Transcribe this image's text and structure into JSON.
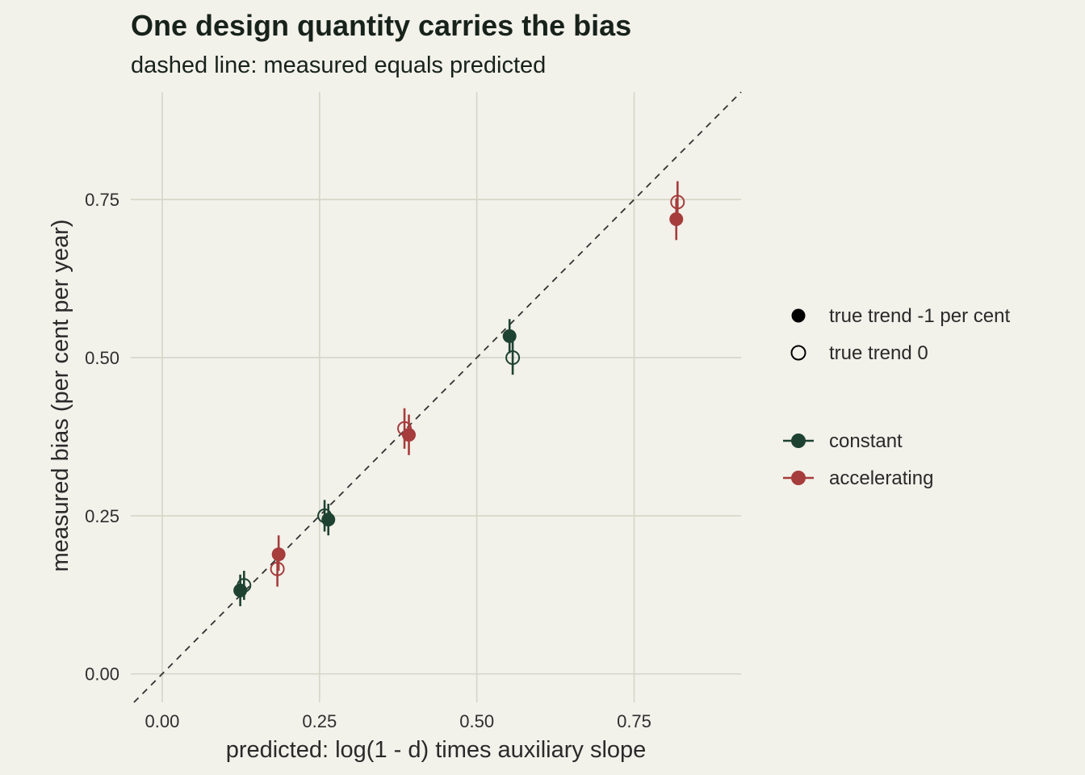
{
  "chart_data": {
    "type": "scatter",
    "title": "One design quantity carries the bias",
    "subtitle": "dashed line: measured equals predicted",
    "xlabel": "predicted: log(1 - d) times auxiliary slope",
    "ylabel": "measured bias (per cent per year)",
    "xlim": [
      -0.05,
      0.92
    ],
    "ylim": [
      -0.045,
      0.92
    ],
    "x_ticks": [
      "0.00",
      "0.25",
      "0.50",
      "0.75"
    ],
    "y_ticks": [
      "0.00",
      "0.25",
      "0.50",
      "0.75"
    ],
    "x_tick_values": [
      0,
      0.25,
      0.5,
      0.75
    ],
    "y_tick_values": [
      0,
      0.25,
      0.5,
      0.75
    ],
    "grid": true,
    "reference_line": "y = x",
    "legend_position": "right",
    "shape_legend": [
      {
        "label": "true trend -1 per cent",
        "shape": "filled-circle"
      },
      {
        "label": "true trend 0",
        "shape": "open-circle"
      }
    ],
    "color_legend": [
      {
        "label": "constant",
        "color": "#1e4231"
      },
      {
        "label": "accelerating",
        "color": "#a63c3c"
      }
    ],
    "series": [
      {
        "name": "constant",
        "color": "#1e4231",
        "points": [
          {
            "x": 0.124,
            "y": 0.132,
            "lo": 0.107,
            "hi": 0.157,
            "trend": "true trend -1 per cent"
          },
          {
            "x": 0.13,
            "y": 0.14,
            "lo": 0.117,
            "hi": 0.163,
            "trend": "true trend 0"
          },
          {
            "x": 0.264,
            "y": 0.244,
            "lo": 0.219,
            "hi": 0.269,
            "trend": "true trend -1 per cent"
          },
          {
            "x": 0.258,
            "y": 0.25,
            "lo": 0.225,
            "hi": 0.275,
            "trend": "true trend 0"
          },
          {
            "x": 0.552,
            "y": 0.534,
            "lo": 0.507,
            "hi": 0.561,
            "trend": "true trend -1 per cent"
          },
          {
            "x": 0.557,
            "y": 0.5,
            "lo": 0.473,
            "hi": 0.527,
            "trend": "true trend 0"
          }
        ]
      },
      {
        "name": "accelerating",
        "color": "#a63c3c",
        "points": [
          {
            "x": 0.185,
            "y": 0.189,
            "lo": 0.163,
            "hi": 0.219,
            "trend": "true trend -1 per cent"
          },
          {
            "x": 0.183,
            "y": 0.166,
            "lo": 0.138,
            "hi": 0.194,
            "trend": "true trend 0"
          },
          {
            "x": 0.392,
            "y": 0.378,
            "lo": 0.346,
            "hi": 0.41,
            "trend": "true trend -1 per cent"
          },
          {
            "x": 0.385,
            "y": 0.388,
            "lo": 0.356,
            "hi": 0.42,
            "trend": "true trend 0"
          },
          {
            "x": 0.817,
            "y": 0.719,
            "lo": 0.686,
            "hi": 0.752,
            "trend": "true trend -1 per cent"
          },
          {
            "x": 0.819,
            "y": 0.746,
            "lo": 0.713,
            "hi": 0.779,
            "trend": "true trend 0"
          }
        ]
      }
    ]
  }
}
